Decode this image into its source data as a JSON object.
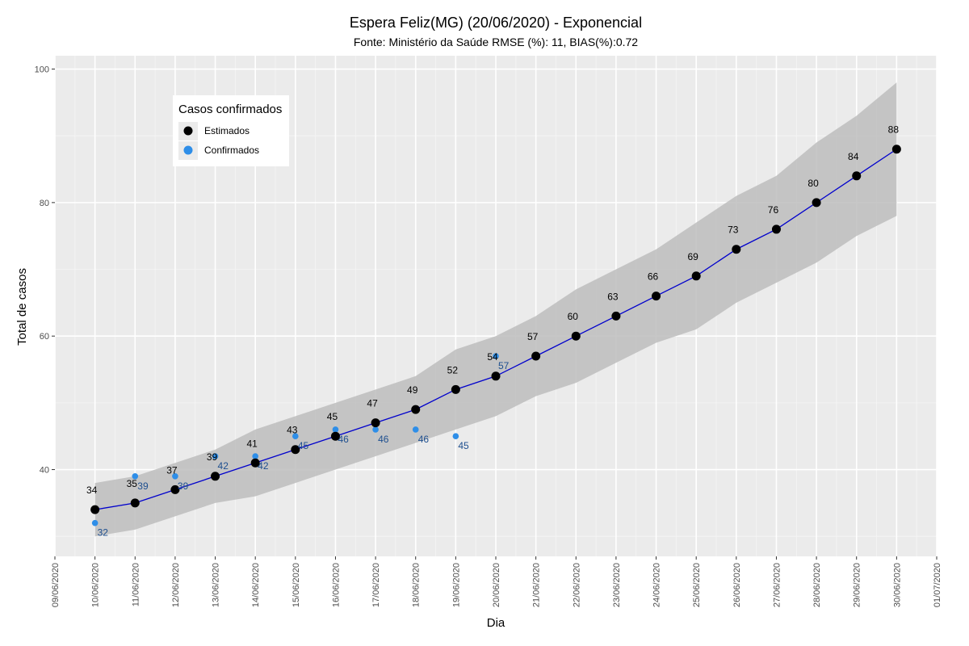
{
  "chart_data": {
    "type": "line",
    "title": "Espera Feliz(MG) (20/06/2020) - Exponencial",
    "subtitle": "Fonte: Ministério da Saúde RMSE (%): 11, BIAS(%):0.72",
    "xlabel": "Dia",
    "ylabel": "Total de casos",
    "ylim": [
      27,
      102
    ],
    "y_ticks": [
      40,
      60,
      80,
      100
    ],
    "x_ticks": [
      "09/06/2020",
      "10/06/2020",
      "11/06/2020",
      "12/06/2020",
      "13/06/2020",
      "14/06/2020",
      "15/06/2020",
      "16/06/2020",
      "17/06/2020",
      "18/06/2020",
      "19/06/2020",
      "20/06/2020",
      "21/06/2020",
      "22/06/2020",
      "23/06/2020",
      "24/06/2020",
      "25/06/2020",
      "26/06/2020",
      "27/06/2020",
      "28/06/2020",
      "29/06/2020",
      "30/06/2020",
      "01/07/2020"
    ],
    "grid": true,
    "legend": {
      "title": "Casos confirmados",
      "position": "top-left",
      "entries": [
        {
          "label": "Estimados",
          "color": "#000000"
        },
        {
          "label": "Confirmados",
          "color": "#2e8ee8"
        }
      ]
    },
    "series": [
      {
        "name": "Estimados",
        "color": "#000000",
        "line_color": "#0000cc",
        "x": [
          "10/06/2020",
          "11/06/2020",
          "12/06/2020",
          "13/06/2020",
          "14/06/2020",
          "15/06/2020",
          "16/06/2020",
          "17/06/2020",
          "18/06/2020",
          "19/06/2020",
          "20/06/2020",
          "21/06/2020",
          "22/06/2020",
          "23/06/2020",
          "24/06/2020",
          "25/06/2020",
          "26/06/2020",
          "27/06/2020",
          "28/06/2020",
          "29/06/2020",
          "30/06/2020"
        ],
        "values": [
          34,
          35,
          37,
          39,
          41,
          43,
          45,
          47,
          49,
          52,
          54,
          57,
          60,
          63,
          66,
          69,
          73,
          76,
          80,
          84,
          88
        ],
        "labels": [
          "34",
          "35",
          "37",
          "39",
          "41",
          "43",
          "45",
          "47",
          "49",
          "52",
          "54",
          "57",
          "60",
          "63",
          "66",
          "69",
          "73",
          "76",
          "80",
          "84",
          "88"
        ]
      },
      {
        "name": "Confirmados",
        "color": "#2e8ee8",
        "x": [
          "10/06/2020",
          "11/06/2020",
          "12/06/2020",
          "13/06/2020",
          "14/06/2020",
          "15/06/2020",
          "16/06/2020",
          "17/06/2020",
          "18/06/2020",
          "19/06/2020",
          "20/06/2020"
        ],
        "values": [
          32,
          39,
          39,
          42,
          42,
          45,
          46,
          46,
          46,
          45,
          57
        ],
        "labels": [
          "32",
          "39",
          "39",
          "42",
          "42",
          "45",
          "46",
          "46",
          "46",
          "45",
          "57"
        ]
      }
    ],
    "confidence_band": {
      "x": [
        "10/06/2020",
        "11/06/2020",
        "12/06/2020",
        "13/06/2020",
        "14/06/2020",
        "15/06/2020",
        "16/06/2020",
        "17/06/2020",
        "18/06/2020",
        "19/06/2020",
        "20/06/2020",
        "21/06/2020",
        "22/06/2020",
        "23/06/2020",
        "24/06/2020",
        "25/06/2020",
        "26/06/2020",
        "27/06/2020",
        "28/06/2020",
        "29/06/2020",
        "30/06/2020"
      ],
      "lower": [
        30,
        31,
        33,
        35,
        36,
        38,
        40,
        42,
        44,
        46,
        48,
        51,
        53,
        56,
        59,
        61,
        65,
        68,
        71,
        75,
        78
      ],
      "upper": [
        38,
        39,
        41,
        43,
        46,
        48,
        50,
        52,
        54,
        58,
        60,
        63,
        67,
        70,
        73,
        77,
        81,
        84,
        89,
        93,
        98
      ],
      "color": "#bdbdbd"
    },
    "panel_color": "#ebebeb"
  }
}
